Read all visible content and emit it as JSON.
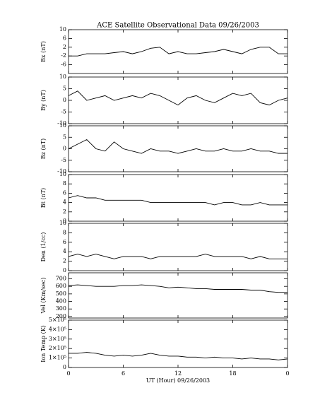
{
  "chart_data": [
    {
      "type": "line",
      "title": "ACE Satellite Observational Data   09/26/2003",
      "ylabel": "Bx (nT)",
      "color": "#000000",
      "x": [
        0,
        1,
        2,
        3,
        4,
        5,
        6,
        7,
        8,
        9,
        10,
        11,
        12,
        13,
        14,
        15,
        16,
        17,
        18,
        19,
        20,
        21,
        22,
        23,
        24
      ],
      "xlim": [
        0,
        24
      ],
      "xticks": [
        0,
        6,
        12,
        18,
        24
      ],
      "values": [
        -2,
        -2,
        -1,
        -1,
        -1,
        -0.5,
        0,
        -1,
        0,
        1.5,
        2,
        -1,
        0,
        -1,
        -1,
        -0.5,
        0,
        1,
        0,
        -1,
        1,
        2,
        2,
        -1,
        -1
      ],
      "ylim": [
        -10,
        10
      ],
      "yticks": [
        -6,
        -2,
        2,
        6,
        10
      ]
    },
    {
      "type": "line",
      "ylabel": "By (nT)",
      "color": "#000000",
      "x": [
        0,
        1,
        2,
        3,
        4,
        5,
        6,
        7,
        8,
        9,
        10,
        11,
        12,
        13,
        14,
        15,
        16,
        17,
        18,
        19,
        20,
        21,
        22,
        23,
        24
      ],
      "xlim": [
        0,
        24
      ],
      "xticks": [
        0,
        6,
        12,
        18,
        24
      ],
      "values": [
        2,
        4,
        0,
        1,
        2,
        0,
        1,
        2,
        1,
        3,
        2,
        0,
        -2,
        1,
        2,
        0,
        -1,
        1,
        3,
        2,
        3,
        -1,
        -2,
        0,
        1
      ],
      "ylim": [
        -10,
        10
      ],
      "yticks": [
        -10,
        -5,
        0,
        5,
        10
      ]
    },
    {
      "type": "line",
      "ylabel": "Bz (nT)",
      "color": "#000000",
      "x": [
        0,
        1,
        2,
        3,
        4,
        5,
        6,
        7,
        8,
        9,
        10,
        11,
        12,
        13,
        14,
        15,
        16,
        17,
        18,
        19,
        20,
        21,
        22,
        23,
        24
      ],
      "xlim": [
        0,
        24
      ],
      "xticks": [
        0,
        6,
        12,
        18,
        24
      ],
      "values": [
        0,
        2,
        4,
        0,
        -1,
        3,
        0,
        -1,
        -2,
        0,
        -1,
        -1,
        -2,
        -1,
        0,
        -1,
        -1,
        0,
        -1,
        -1,
        0,
        -1,
        -1,
        -2,
        -2
      ],
      "ylim": [
        -10,
        10
      ],
      "yticks": [
        -10,
        -5,
        0,
        5,
        10
      ]
    },
    {
      "type": "line",
      "ylabel": "Bt (nT)",
      "color": "#000000",
      "x": [
        0,
        1,
        2,
        3,
        4,
        5,
        6,
        7,
        8,
        9,
        10,
        11,
        12,
        13,
        14,
        15,
        16,
        17,
        18,
        19,
        20,
        21,
        22,
        23,
        24
      ],
      "xlim": [
        0,
        24
      ],
      "xticks": [
        0,
        6,
        12,
        18,
        24
      ],
      "values": [
        5,
        5.5,
        5,
        5,
        4.5,
        4.5,
        4.5,
        4.5,
        4.5,
        4,
        4,
        4,
        4,
        4,
        4,
        4,
        3.5,
        4,
        4,
        3.5,
        3.5,
        4,
        3.5,
        3.5,
        3.5
      ],
      "ylim": [
        0,
        10
      ],
      "yticks": [
        0,
        2,
        4,
        6,
        8,
        10
      ]
    },
    {
      "type": "line",
      "ylabel": "Den (1/cc)",
      "color": "#000000",
      "x": [
        0,
        1,
        2,
        3,
        4,
        5,
        6,
        7,
        8,
        9,
        10,
        11,
        12,
        13,
        14,
        15,
        16,
        17,
        18,
        19,
        20,
        21,
        22,
        23,
        24
      ],
      "xlim": [
        0,
        24
      ],
      "xticks": [
        0,
        6,
        12,
        18,
        24
      ],
      "values": [
        3,
        3.5,
        3,
        3.5,
        3,
        2.5,
        3,
        3,
        3,
        2.5,
        3,
        3,
        3,
        3,
        3,
        3.5,
        3,
        3,
        3,
        3,
        2.5,
        3,
        2.5,
        2.5,
        2.5
      ],
      "ylim": [
        0,
        10
      ],
      "yticks": [
        0,
        2,
        4,
        6,
        8,
        10
      ]
    },
    {
      "type": "line",
      "ylabel": "Vel (Km/sec)",
      "color": "#000000",
      "x": [
        0,
        1,
        2,
        3,
        4,
        5,
        6,
        7,
        8,
        9,
        10,
        11,
        12,
        13,
        14,
        15,
        16,
        17,
        18,
        19,
        20,
        21,
        22,
        23,
        24
      ],
      "xlim": [
        0,
        24
      ],
      "xticks": [
        0,
        6,
        12,
        18,
        24
      ],
      "values": [
        610,
        620,
        610,
        600,
        600,
        600,
        610,
        610,
        620,
        610,
        600,
        580,
        590,
        580,
        570,
        570,
        560,
        560,
        560,
        560,
        550,
        550,
        530,
        520,
        520
      ],
      "ylim": [
        180,
        780
      ],
      "yticks": [
        200,
        300,
        400,
        500,
        600,
        700
      ]
    },
    {
      "type": "line",
      "ylabel": "Ion Temp (K)",
      "color": "#000000",
      "xlabel": "UT (Hour)  09/26/2003",
      "x": [
        0,
        1,
        2,
        3,
        4,
        5,
        6,
        7,
        8,
        9,
        10,
        11,
        12,
        13,
        14,
        15,
        16,
        17,
        18,
        19,
        20,
        21,
        22,
        23,
        24
      ],
      "xlim": [
        0,
        24
      ],
      "xticks": [
        0,
        6,
        12,
        18,
        {
          "value": 24,
          "label": "0"
        }
      ],
      "values": [
        150000,
        150000,
        160000,
        150000,
        130000,
        120000,
        130000,
        120000,
        130000,
        150000,
        130000,
        120000,
        120000,
        110000,
        110000,
        100000,
        110000,
        100000,
        100000,
        90000,
        100000,
        90000,
        90000,
        80000,
        90000
      ],
      "ylim": [
        0,
        500000
      ],
      "yticks": [
        0,
        {
          "value": 100000,
          "label": "1×10⁵"
        },
        {
          "value": 200000,
          "label": "2×10⁵"
        },
        {
          "value": 300000,
          "label": "3×10⁵"
        },
        {
          "value": 400000,
          "label": "4×10⁵"
        },
        {
          "value": 500000,
          "label": "5×10⁵"
        }
      ]
    }
  ]
}
